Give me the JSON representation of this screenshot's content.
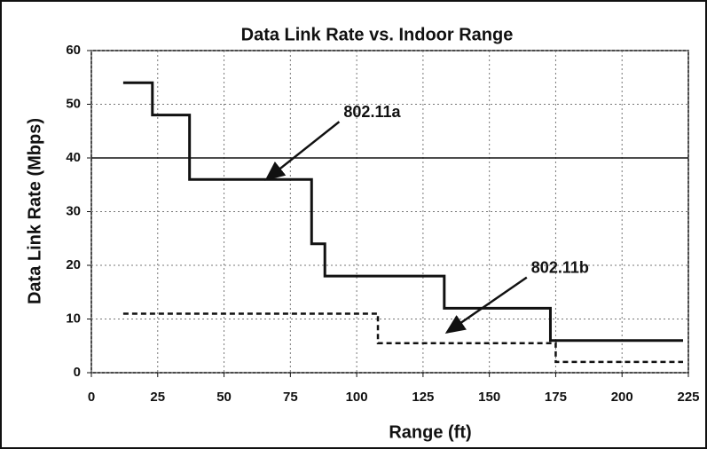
{
  "chart_data": {
    "type": "line",
    "title": "Data Link Rate vs. Indoor Range",
    "x_label": "Range (ft)",
    "y_label": "Data Link Rate (Mbps)",
    "xlim": [
      0,
      225
    ],
    "xticks": [
      0,
      25,
      50,
      75,
      100,
      125,
      150,
      175,
      200,
      225
    ],
    "ylim": [
      0,
      60
    ],
    "yticks": [
      0,
      10,
      20,
      30,
      40,
      50,
      60
    ],
    "grid": true,
    "hline": 40,
    "series": [
      {
        "name": "802.11a",
        "color": "#111111",
        "dash": false,
        "x": [
          12,
          23,
          23,
          37,
          37,
          83,
          83,
          88,
          88,
          133,
          133,
          173,
          173,
          223
        ],
        "values": [
          54,
          54,
          48,
          48,
          36,
          36,
          24,
          24,
          18,
          18,
          12,
          12,
          6,
          6
        ]
      },
      {
        "name": "802.11b",
        "color": "#111111",
        "dash": true,
        "x": [
          12,
          108,
          108,
          175,
          175,
          223
        ],
        "values": [
          11,
          11,
          5.5,
          5.5,
          2,
          2
        ]
      }
    ],
    "annotations": [
      {
        "text": "802.11a",
        "x": 66,
        "y": 36
      },
      {
        "text": "802.11b",
        "x": 134,
        "y": 7.5
      }
    ]
  }
}
